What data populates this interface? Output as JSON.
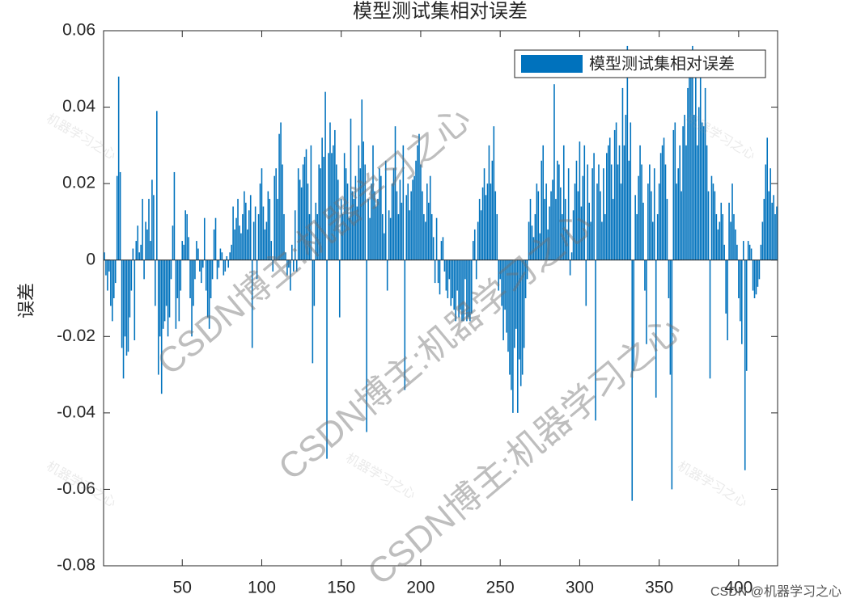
{
  "chart_data": {
    "type": "bar",
    "title": "模型测试集相对误差",
    "ylabel": "误差",
    "legend_position": "upper right",
    "series": [
      {
        "name": "模型测试集相对误差",
        "color": "#0072bd",
        "values": [
          0.002,
          -0.004,
          -0.008,
          -0.003,
          -0.012,
          -0.016,
          -0.01,
          -0.006,
          0.022,
          0.048,
          0.023,
          -0.023,
          -0.031,
          -0.02,
          -0.025,
          -0.024,
          -0.015,
          -0.008,
          0.003,
          -0.021,
          0.005,
          0.009,
          0.002,
          0.004,
          0.016,
          -0.005,
          0.01,
          0.008,
          0.016,
          0.005,
          0.021,
          0.017,
          -0.012,
          0.039,
          -0.03,
          -0.02,
          -0.035,
          -0.018,
          -0.016,
          -0.012,
          -0.02,
          -0.015,
          -0.005,
          0.009,
          0.023,
          -0.018,
          -0.01,
          -0.016,
          -0.008,
          0.005,
          0.004,
          0.013,
          0.012,
          0.006,
          -0.01,
          -0.02,
          -0.012,
          -0.005,
          0.005,
          0.003,
          -0.003,
          -0.006,
          -0.002,
          0.011,
          -0.008,
          -0.015,
          -0.018,
          -0.01,
          -0.005,
          0.008,
          0.011,
          -0.005,
          -0.002,
          0.003,
          0.002,
          -0.004,
          -0.003,
          0.001,
          -0.002,
          0.002,
          0.004,
          0.014,
          0.008,
          0.011,
          0.016,
          0.009,
          0.007,
          0.012,
          0.018,
          0.015,
          0.008,
          0.013,
          0.017,
          -0.023,
          0.01,
          0.014,
          -0.005,
          0.012,
          0.02,
          0.024,
          0.014,
          0.008,
          0.01,
          0.018,
          0.016,
          0.005,
          -0.003,
          0.022,
          0.024,
          0.016,
          0.033,
          0.036,
          0.025,
          0.012,
          0.002,
          -0.004,
          -0.002,
          -0.008,
          0.004,
          -0.003,
          0.013,
          -0.003,
          0.024,
          0.021,
          0.019,
          0.025,
          0.027,
          0.029,
          0.02,
          0.012,
          0.03,
          -0.027,
          -0.012,
          0.015,
          0.012,
          0.025,
          0.024,
          0.032,
          0.027,
          0.044,
          -0.052,
          0.028,
          0.036,
          0.028,
          0.03,
          0.034,
          0.025,
          0.021,
          -0.015,
          0.016,
          0.012,
          0.028,
          0.024,
          0.02,
          0.011,
          0.037,
          0.018,
          0.016,
          0.022,
          0.014,
          0.03,
          0.024,
          0.042,
          0.031,
          0.025,
          -0.045,
          0.016,
          0.011,
          0.02,
          0.03,
          0.018,
          0.014,
          0.016,
          0.024,
          0.022,
          0.012,
          0.007,
          0.026,
          -0.008,
          0.013,
          0.011,
          0.02,
          0.024,
          0.035,
          0.018,
          0.012,
          0.021,
          0.015,
          0.03,
          -0.034,
          0.017,
          0.02,
          0.013,
          0.018,
          0.021,
          0.022,
          0.026,
          0.03,
          0.033,
          0.025,
          0.018,
          0.012,
          0.01,
          0.02,
          0.015,
          0.022,
          0.012,
          0.006,
          -0.006,
          0.011,
          -0.006,
          -0.009,
          0.005,
          0.006,
          -0.003,
          -0.008,
          -0.01,
          -0.005,
          -0.012,
          -0.01,
          -0.013,
          -0.016,
          -0.008,
          -0.015,
          -0.013,
          -0.016,
          -0.016,
          -0.005,
          -0.016,
          -0.015,
          -0.016,
          -0.014,
          0.005,
          0.008,
          -0.005,
          0.01,
          0.016,
          0.013,
          0.019,
          0.024,
          0.017,
          0.02,
          0.03,
          0.02,
          0.026,
          0.035,
          0.018,
          0.012,
          -0.008,
          -0.005,
          -0.012,
          -0.021,
          -0.013,
          -0.019,
          -0.024,
          -0.03,
          -0.034,
          -0.04,
          -0.023,
          -0.018,
          -0.04,
          -0.026,
          -0.033,
          -0.03,
          -0.023,
          -0.01,
          -0.005,
          0.01,
          0.016,
          0.009,
          0.006,
          0.012,
          0.02,
          0.018,
          0.007,
          0.026,
          0.03,
          0.016,
          0.02,
          0.008,
          0.014,
          0.018,
          0.021,
          0.046,
          0.016,
          0.026,
          0.025,
          0.019,
          0.012,
          0.03,
          0.016,
          0.008,
          0.024,
          -0.004,
          0.002,
          0.013,
          0.02,
          0.026,
          0.018,
          0.031,
          0.014,
          0.022,
          0.03,
          -0.012,
          0.025,
          0.015,
          0.01,
          0.024,
          0.028,
          -0.042,
          0.02,
          0.025,
          0.018,
          0.01,
          0.024,
          0.012,
          0.028,
          0.03,
          0.032,
          0.025,
          0.016,
          0.034,
          0.036,
          0.025,
          0.03,
          0.02,
          0.045,
          0.03,
          0.038,
          0.056,
          0.026,
          0.036,
          -0.063,
          -0.029,
          0.017,
          0.012,
          0.022,
          0.03,
          0.025,
          0.015,
          -0.008,
          -0.022,
          0.02,
          0.025,
          0.018,
          0.01,
          0.024,
          -0.036,
          0.012,
          0.02,
          0.028,
          0.03,
          0.032,
          0.025,
          0.016,
          -0.01,
          -0.03,
          -0.06,
          0.034,
          0.036,
          0.02,
          0.024,
          0.03,
          0.018,
          0.035,
          0.038,
          0.03,
          0.045,
          0.048,
          0.052,
          0.056,
          0.038,
          0.048,
          0.03,
          0.04,
          0.048,
          0.036,
          0.035,
          0.045,
          0.03,
          0.018,
          -0.031,
          0.022,
          0.02,
          0.018,
          0.012,
          0.008,
          0.01,
          0.015,
          0.012,
          0.004,
          -0.014,
          -0.021,
          0.015,
          0.01,
          0.02,
          0.012,
          0.008,
          0.004,
          -0.01,
          -0.016,
          -0.022,
          0.005,
          -0.055,
          -0.029,
          0.005,
          0.004,
          0.003,
          -0.008,
          -0.01,
          -0.009,
          -0.007,
          -0.005,
          0.004,
          0.01,
          0.016,
          0.025,
          0.032,
          0.018,
          0.024,
          0.015,
          0.017,
          0.012,
          0.014
        ]
      }
    ],
    "x": [
      1,
      2,
      3,
      4,
      5,
      6,
      7,
      8,
      9,
      10,
      11,
      12,
      13,
      14,
      15,
      16,
      17,
      18,
      19,
      20,
      21,
      22,
      23,
      24,
      25,
      26,
      27,
      28,
      29,
      30,
      31,
      32,
      33,
      34,
      35,
      36,
      37,
      38,
      39,
      40,
      41,
      42,
      43,
      44,
      45,
      46,
      47,
      48,
      49,
      50,
      51,
      52,
      53,
      54,
      55,
      56,
      57,
      58,
      59,
      60,
      61,
      62,
      63,
      64,
      65,
      66,
      67,
      68,
      69,
      70,
      71,
      72,
      73,
      74,
      75,
      76,
      77,
      78,
      79,
      80,
      81,
      82,
      83,
      84,
      85,
      86,
      87,
      88,
      89,
      90,
      91,
      92,
      93,
      94,
      95,
      96,
      97,
      98,
      99,
      100,
      101,
      102,
      103,
      104,
      105,
      106,
      107,
      108,
      109,
      110,
      111,
      112,
      113,
      114,
      115,
      116,
      117,
      118,
      119,
      120,
      121,
      122,
      123,
      124,
      125,
      126,
      127,
      128,
      129,
      130,
      131,
      132,
      133,
      134,
      135,
      136,
      137,
      138,
      139,
      140,
      141,
      142,
      143,
      144,
      145,
      146,
      147,
      148,
      149,
      150,
      151,
      152,
      153,
      154,
      155,
      156,
      157,
      158,
      159,
      160,
      161,
      162,
      163,
      164,
      165,
      166,
      167,
      168,
      169,
      170,
      171,
      172,
      173,
      174,
      175,
      176,
      177,
      178,
      179,
      180,
      181,
      182,
      183,
      184,
      185,
      186,
      187,
      188,
      189,
      190,
      191,
      192,
      193,
      194,
      195,
      196,
      197,
      198,
      199,
      200,
      201,
      202,
      203,
      204,
      205,
      206,
      207,
      208,
      209,
      210,
      211,
      212,
      213,
      214,
      215,
      216,
      217,
      218,
      219,
      220,
      221,
      222,
      223,
      224,
      225,
      226,
      227,
      228,
      229,
      230,
      231,
      232,
      233,
      234,
      235,
      236,
      237,
      238,
      239,
      240,
      241,
      242,
      243,
      244,
      245,
      246,
      247,
      248,
      249,
      250,
      251,
      252,
      253,
      254,
      255,
      256,
      257,
      258,
      259,
      260,
      261,
      262,
      263,
      264,
      265,
      266,
      267,
      268,
      269,
      270,
      271,
      272,
      273,
      274,
      275,
      276,
      277,
      278,
      279,
      280,
      281,
      282,
      283,
      284,
      285,
      286,
      287,
      288,
      289,
      290,
      291,
      292,
      293,
      294,
      295,
      296,
      297,
      298,
      299,
      300,
      301,
      302,
      303,
      304,
      305,
      306,
      307,
      308,
      309,
      310,
      311,
      312,
      313,
      314,
      315,
      316,
      317,
      318,
      319,
      320,
      321,
      322,
      323,
      324,
      325,
      326,
      327,
      328,
      329,
      330,
      331,
      332,
      333,
      334,
      335,
      336,
      337,
      338,
      339,
      340,
      341,
      342,
      343,
      344,
      345,
      346,
      347,
      348,
      349,
      350,
      351,
      352,
      353,
      354,
      355,
      356,
      357,
      358,
      359,
      360,
      361,
      362,
      363,
      364,
      365,
      366,
      367,
      368,
      369,
      370,
      371,
      372,
      373,
      374,
      375,
      376,
      377,
      378,
      379,
      380,
      381,
      382,
      383,
      384,
      385,
      386,
      387,
      388,
      389,
      390,
      391,
      392,
      393,
      394,
      395,
      396,
      397,
      398,
      399,
      400,
      401,
      402,
      403,
      404,
      405,
      406,
      407,
      408,
      409,
      410,
      411,
      412,
      413,
      414,
      415,
      416,
      417,
      418,
      419,
      420,
      421,
      422,
      423,
      424
    ],
    "xlim": [
      0.5,
      424.5
    ],
    "xticks": [
      50,
      100,
      150,
      200,
      250,
      300,
      350,
      400
    ],
    "ylim": [
      -0.08,
      0.06
    ],
    "yticks": [
      -0.08,
      -0.06,
      -0.04,
      -0.02,
      0,
      0.02,
      0.04,
      0.06
    ],
    "grid": false
  },
  "watermarks": {
    "main": "CSDN博主:机器学习之心",
    "small": "机器学习之心",
    "corner": "CSDN @机器学习之心"
  }
}
